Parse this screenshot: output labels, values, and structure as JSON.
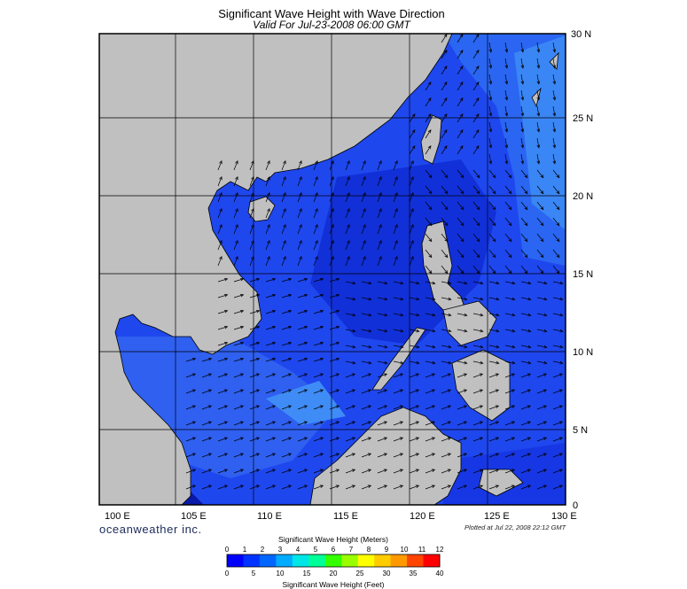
{
  "title": "Significant Wave Height with Wave Direction",
  "subtitle": "Valid For Jul-23-2008 06:00 GMT",
  "lon_labels": [
    "100 E",
    "105 E",
    "110 E",
    "115 E",
    "120 E",
    "125 E",
    "130 E"
  ],
  "lat_labels": [
    "30 N",
    "25 N",
    "20 N",
    "15 N",
    "10 N",
    "5 N",
    "0"
  ],
  "brand": "oceanweather inc.",
  "plotted": "Plotted at Jul 22, 2008 22:12 GMT",
  "colorbar": {
    "title_meters": "Significant Wave Height (Meters)",
    "title_feet": "Significant Wave Height (Feet)",
    "meters_ticks": [
      "0",
      "1",
      "2",
      "3",
      "4",
      "5",
      "6",
      "7",
      "8",
      "9",
      "10",
      "11",
      "12"
    ],
    "feet_ticks": [
      "0",
      "5",
      "10",
      "15",
      "20",
      "25",
      "30",
      "35",
      "40"
    ],
    "colors": [
      "#0000ff",
      "#0033ff",
      "#0066ff",
      "#00aaff",
      "#00e6e6",
      "#00ff99",
      "#33ff00",
      "#99ff00",
      "#ffff00",
      "#ffcc00",
      "#ff9900",
      "#ff4400",
      "#ff0000"
    ]
  },
  "colors": {
    "land": "#c0c0c0",
    "sea_base": "#1a40ee",
    "grid": "#000000"
  }
}
